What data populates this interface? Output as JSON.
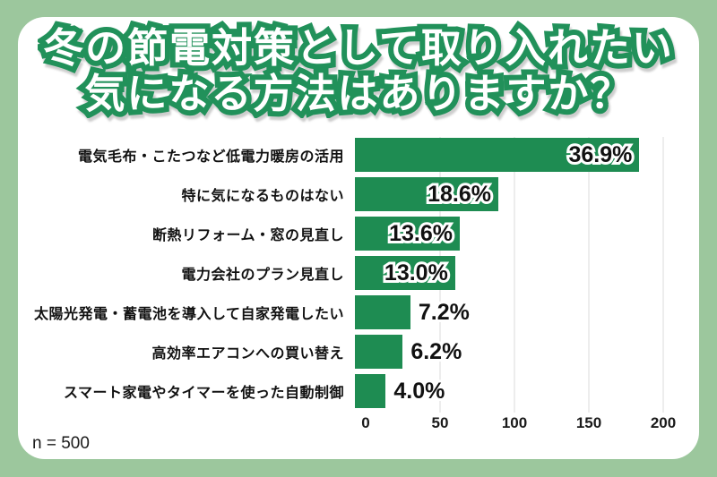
{
  "title": {
    "line1": "冬の節電対策として取り入れたい",
    "line2": "気になる方法はありますか？"
  },
  "sample_size_label": "n = 500",
  "colors": {
    "background": "#9CC79D",
    "card": "#FFFFFF",
    "bar_green": "#1E8C52",
    "title_fill": "#FFFFFF",
    "title_stroke": "#21915A",
    "gridline": "#DBDBDB",
    "text": "#111111"
  },
  "chart_data": {
    "type": "bar",
    "orientation": "horizontal",
    "title": "冬の節電対策として取り入れたい気になる方法はありますか？",
    "categories": [
      "電気毛布・こたつなど低電力暖房の活用",
      "特に気になるものはない",
      "断熱リフォーム・窓の見直し",
      "電力会社のプラン見直し",
      "太陽光発電・蓄電池を導入して自家発電したい",
      "高効率エアコンへの買い替え",
      "スマート家電やタイマーを使った自動制御"
    ],
    "values_percent": [
      36.9,
      18.6,
      13.6,
      13.0,
      7.2,
      6.2,
      4.0
    ],
    "value_labels": [
      "36.9%",
      "18.6%",
      "13.6%",
      "13.0%",
      "7.2%",
      "6.2%",
      "4.0%"
    ],
    "counts": [
      184.5,
      93,
      68,
      65,
      36,
      31,
      20
    ],
    "x_ticks": [
      0,
      50,
      100,
      150,
      200
    ],
    "xlim": [
      0,
      200
    ],
    "sample_size": 500,
    "grid": true,
    "legend": false
  }
}
